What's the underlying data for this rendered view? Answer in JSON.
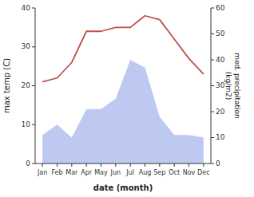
{
  "chart_data": {
    "type": "line",
    "xlabel": "date (month)",
    "ylabel": "max temp (C)",
    "y2label": "med. precipitation\n(kg/m2)",
    "categories": [
      "Jan",
      "Feb",
      "Mar",
      "Apr",
      "May",
      "Jun",
      "Jul",
      "Aug",
      "Sep",
      "Oct",
      "Nov",
      "Dec"
    ],
    "series": [
      {
        "type": "area",
        "axis": "y2",
        "color": "#bdc9f0",
        "values": [
          11,
          15,
          10,
          21,
          21,
          25,
          40,
          37,
          18,
          11,
          11,
          10
        ]
      },
      {
        "type": "line",
        "color": "#c0504d",
        "values": [
          21,
          22,
          26,
          34,
          34,
          35,
          35,
          38,
          37,
          32,
          27,
          23
        ]
      }
    ],
    "ylim": [
      0,
      40
    ],
    "yticks": [
      0,
      10,
      20,
      30,
      40
    ],
    "y2lim": [
      0,
      60
    ],
    "y2ticks": [
      0,
      10,
      20,
      30,
      40,
      50,
      60
    ]
  }
}
